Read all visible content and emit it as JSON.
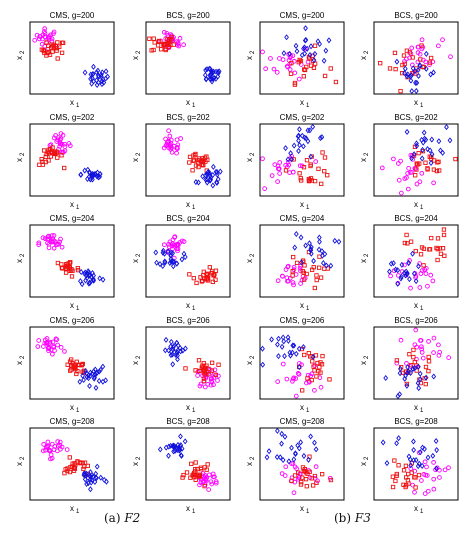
{
  "figure": {
    "captions": [
      {
        "label": "(a)",
        "name": "F2"
      },
      {
        "label": "(b)",
        "name": "F3"
      }
    ]
  },
  "colors": {
    "class_1": "#ff00ff",
    "class_2": "#ee1111",
    "class_3": "#1111dd",
    "frame": "#000000"
  },
  "chart_data": [
    {
      "type": "scatter",
      "group": "F2",
      "title": "CMS, g=200",
      "xlabel": "x",
      "ylabel": "x",
      "marker_classes": [
        "circle",
        "square",
        "diamond"
      ],
      "cluster_centers": [
        [
          0.2,
          0.78
        ],
        [
          0.28,
          0.62
        ],
        [
          0.8,
          0.22
        ]
      ]
    },
    {
      "type": "scatter",
      "group": "F2",
      "title": "BCS, g=200",
      "xlabel": "x",
      "ylabel": "x",
      "marker_classes": [
        "circle",
        "square",
        "diamond"
      ],
      "cluster_centers": [
        [
          0.3,
          0.72
        ],
        [
          0.2,
          0.7
        ],
        [
          0.78,
          0.28
        ]
      ]
    },
    {
      "type": "scatter",
      "group": "F3",
      "title": "CMS, g=200",
      "xlabel": "x",
      "ylabel": "x",
      "marker_classes": [
        "circle",
        "square",
        "diamond"
      ],
      "cluster_centers": [
        [
          0.35,
          0.45
        ],
        [
          0.55,
          0.4
        ],
        [
          0.55,
          0.65
        ]
      ]
    },
    {
      "type": "scatter",
      "group": "F3",
      "title": "BCS, g=200",
      "xlabel": "x",
      "ylabel": "x",
      "marker_classes": [
        "circle",
        "square",
        "diamond"
      ],
      "cluster_centers": [
        [
          0.55,
          0.55
        ],
        [
          0.45,
          0.4
        ],
        [
          0.5,
          0.3
        ]
      ]
    },
    {
      "type": "scatter",
      "group": "F2",
      "title": "CMS, g=202",
      "xlabel": "x",
      "ylabel": "x",
      "marker_classes": [
        "circle",
        "square",
        "diamond"
      ],
      "cluster_centers": [
        [
          0.35,
          0.72
        ],
        [
          0.25,
          0.55
        ],
        [
          0.75,
          0.3
        ]
      ]
    },
    {
      "type": "scatter",
      "group": "F2",
      "title": "BCS, g=202",
      "xlabel": "x",
      "ylabel": "x",
      "marker_classes": [
        "circle",
        "square",
        "diamond"
      ],
      "cluster_centers": [
        [
          0.3,
          0.7
        ],
        [
          0.62,
          0.45
        ],
        [
          0.78,
          0.25
        ]
      ]
    },
    {
      "type": "scatter",
      "group": "F3",
      "title": "CMS, g=202",
      "xlabel": "x",
      "ylabel": "x",
      "marker_classes": [
        "circle",
        "square",
        "diamond"
      ],
      "cluster_centers": [
        [
          0.35,
          0.4
        ],
        [
          0.6,
          0.38
        ],
        [
          0.55,
          0.75
        ]
      ]
    },
    {
      "type": "scatter",
      "group": "F3",
      "title": "BCS, g=202",
      "xlabel": "x",
      "ylabel": "x",
      "marker_classes": [
        "circle",
        "square",
        "diamond"
      ],
      "cluster_centers": [
        [
          0.4,
          0.38
        ],
        [
          0.6,
          0.42
        ],
        [
          0.6,
          0.72
        ]
      ]
    },
    {
      "type": "scatter",
      "group": "F2",
      "title": "CMS, g=204",
      "xlabel": "x",
      "ylabel": "x",
      "marker_classes": [
        "circle",
        "square",
        "diamond"
      ],
      "cluster_centers": [
        [
          0.25,
          0.75
        ],
        [
          0.45,
          0.4
        ],
        [
          0.72,
          0.28
        ]
      ]
    },
    {
      "type": "scatter",
      "group": "F2",
      "title": "BCS, g=204",
      "xlabel": "x",
      "ylabel": "x",
      "marker_classes": [
        "circle",
        "square",
        "diamond"
      ],
      "cluster_centers": [
        [
          0.35,
          0.72
        ],
        [
          0.72,
          0.3
        ],
        [
          0.3,
          0.55
        ]
      ]
    },
    {
      "type": "scatter",
      "group": "F3",
      "title": "CMS, g=204",
      "xlabel": "x",
      "ylabel": "x",
      "marker_classes": [
        "circle",
        "square",
        "diamond"
      ],
      "cluster_centers": [
        [
          0.35,
          0.3
        ],
        [
          0.5,
          0.35
        ],
        [
          0.65,
          0.65
        ]
      ]
    },
    {
      "type": "scatter",
      "group": "F3",
      "title": "BCS, g=204",
      "xlabel": "x",
      "ylabel": "x",
      "marker_classes": [
        "circle",
        "square",
        "diamond"
      ],
      "cluster_centers": [
        [
          0.45,
          0.3
        ],
        [
          0.65,
          0.7
        ],
        [
          0.35,
          0.35
        ]
      ]
    },
    {
      "type": "scatter",
      "group": "F2",
      "title": "CMS, g=206",
      "xlabel": "x",
      "ylabel": "x",
      "marker_classes": [
        "circle",
        "square",
        "diamond"
      ],
      "cluster_centers": [
        [
          0.25,
          0.72
        ],
        [
          0.55,
          0.45
        ],
        [
          0.75,
          0.32
        ]
      ]
    },
    {
      "type": "scatter",
      "group": "F2",
      "title": "BCS, g=206",
      "xlabel": "x",
      "ylabel": "x",
      "marker_classes": [
        "circle",
        "square",
        "diamond"
      ],
      "cluster_centers": [
        [
          0.75,
          0.3
        ],
        [
          0.68,
          0.4
        ],
        [
          0.35,
          0.68
        ]
      ]
    },
    {
      "type": "scatter",
      "group": "F3",
      "title": "CMS, g=206",
      "xlabel": "x",
      "ylabel": "x",
      "marker_classes": [
        "circle",
        "square",
        "diamond"
      ],
      "cluster_centers": [
        [
          0.5,
          0.3
        ],
        [
          0.68,
          0.45
        ],
        [
          0.4,
          0.68
        ]
      ]
    },
    {
      "type": "scatter",
      "group": "F3",
      "title": "BCS, g=206",
      "xlabel": "x",
      "ylabel": "x",
      "marker_classes": [
        "circle",
        "square",
        "diamond"
      ],
      "cluster_centers": [
        [
          0.55,
          0.7
        ],
        [
          0.5,
          0.4
        ],
        [
          0.45,
          0.32
        ]
      ]
    },
    {
      "type": "scatter",
      "group": "F2",
      "title": "CMS, g=208",
      "xlabel": "x",
      "ylabel": "x",
      "marker_classes": [
        "circle",
        "square",
        "diamond"
      ],
      "cluster_centers": [
        [
          0.25,
          0.72
        ],
        [
          0.55,
          0.45
        ],
        [
          0.72,
          0.3
        ]
      ]
    },
    {
      "type": "scatter",
      "group": "F2",
      "title": "BCS, g=208",
      "xlabel": "x",
      "ylabel": "x",
      "marker_classes": [
        "circle",
        "square",
        "diamond"
      ],
      "cluster_centers": [
        [
          0.72,
          0.3
        ],
        [
          0.62,
          0.35
        ],
        [
          0.35,
          0.7
        ]
      ]
    },
    {
      "type": "scatter",
      "group": "F3",
      "title": "CMS, g=208",
      "xlabel": "x",
      "ylabel": "x",
      "marker_classes": [
        "circle",
        "square",
        "diamond"
      ],
      "cluster_centers": [
        [
          0.45,
          0.35
        ],
        [
          0.55,
          0.3
        ],
        [
          0.4,
          0.7
        ]
      ]
    },
    {
      "type": "scatter",
      "group": "F3",
      "title": "BCS, g=208",
      "xlabel": "x",
      "ylabel": "x",
      "marker_classes": [
        "circle",
        "square",
        "diamond"
      ],
      "cluster_centers": [
        [
          0.6,
          0.35
        ],
        [
          0.4,
          0.35
        ],
        [
          0.5,
          0.65
        ]
      ]
    }
  ]
}
